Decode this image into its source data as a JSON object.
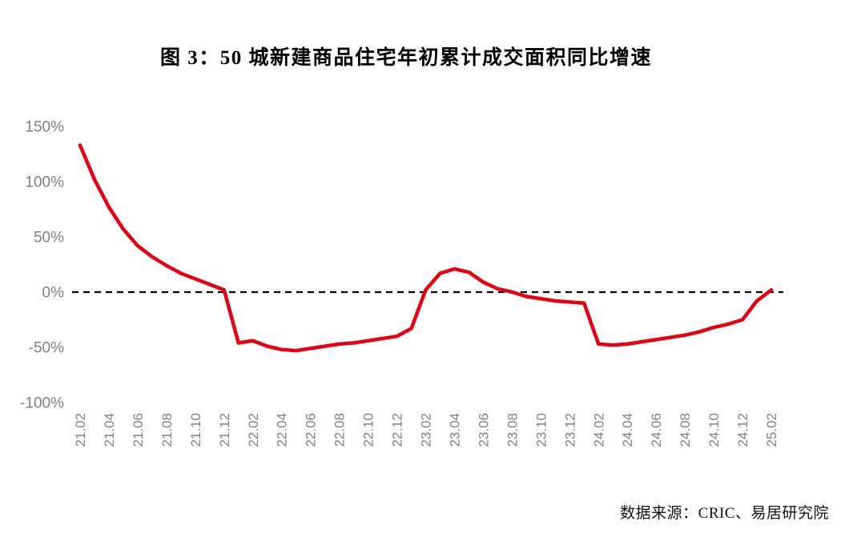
{
  "page": {
    "background": "#ffffff"
  },
  "chart_data": {
    "type": "line",
    "title": "图 3：50 城新建商品住宅年初累计成交面积同比增速",
    "source": "数据来源：CRIC、易居研究院",
    "unit": "%",
    "x": [
      "21.02",
      "21.03",
      "21.04",
      "21.05",
      "21.06",
      "21.07",
      "21.08",
      "21.09",
      "21.10",
      "21.11",
      "21.12",
      "22.01",
      "22.02",
      "22.03",
      "22.04",
      "22.05",
      "22.06",
      "22.07",
      "22.08",
      "22.09",
      "22.10",
      "22.11",
      "22.12",
      "23.01",
      "23.02",
      "23.03",
      "23.04",
      "23.05",
      "23.06",
      "23.07",
      "23.08",
      "23.09",
      "23.10",
      "23.11",
      "23.12",
      "24.01",
      "24.02",
      "24.03",
      "24.04",
      "24.05",
      "24.06",
      "24.07",
      "24.08",
      "24.09",
      "24.10",
      "24.11",
      "24.12",
      "25.01",
      "25.02"
    ],
    "values": [
      133,
      102,
      77,
      57,
      42,
      32,
      24,
      17,
      12,
      7,
      2,
      -46,
      -44,
      -49,
      -52,
      -53,
      -51,
      -49,
      -47,
      -46,
      -44,
      -42,
      -40,
      -33,
      2,
      17,
      21,
      18,
      9,
      3,
      0,
      -4,
      -6,
      -8,
      -9,
      -10,
      -47,
      -48,
      -47,
      -45,
      -43,
      -41,
      -39,
      -36,
      -32,
      -29,
      -25,
      -8,
      2
    ],
    "ylim": [
      -100,
      150
    ],
    "yticks": [
      {
        "label": "150%",
        "value": 150
      },
      {
        "label": "100%",
        "value": 100
      },
      {
        "label": "50%",
        "value": 50
      },
      {
        "label": "0%",
        "value": 0
      },
      {
        "label": "-50%",
        "value": -50
      },
      {
        "label": "-100%",
        "value": -100
      }
    ],
    "xtick_step": 2,
    "line_color": "#e60012",
    "zero_line": {
      "style": "dashed",
      "color": "#000000",
      "value": 0
    },
    "axis_label_color": "#808080",
    "grid": "off",
    "legend": "none"
  }
}
